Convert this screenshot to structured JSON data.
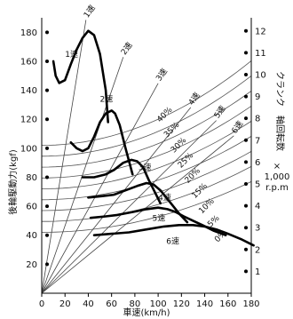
{
  "chart_data": {
    "type": "line",
    "title": "",
    "xlabel": "車速(km/h)",
    "ylabel": "後輪駆動力(kgf)",
    "y2label": [
      "クランク",
      "軸回転数",
      "×",
      "1,000",
      "r.p.m"
    ],
    "xlim": [
      0,
      180
    ],
    "ylim": [
      0,
      190
    ],
    "y2lim": [
      0,
      12.6
    ],
    "xticks": [
      "0",
      "20",
      "40",
      "60",
      "80",
      "100",
      "120",
      "140",
      "160",
      "180"
    ],
    "yticks": [
      "20",
      "40",
      "60",
      "80",
      "100",
      "120",
      "140",
      "160",
      "180"
    ],
    "y2ticks": [
      "1",
      "2",
      "3",
      "4",
      "5",
      "6",
      "7",
      "8",
      "9",
      "10",
      "11",
      "12"
    ],
    "gear_curves": [
      {
        "label": "1速",
        "points": [
          [
            10,
            160
          ],
          [
            12,
            150
          ],
          [
            15,
            145
          ],
          [
            20,
            147
          ],
          [
            25,
            158
          ],
          [
            30,
            168
          ],
          [
            35,
            176
          ],
          [
            40,
            181
          ],
          [
            45,
            178
          ],
          [
            50,
            165
          ],
          [
            55,
            140
          ],
          [
            57,
            118
          ]
        ]
      },
      {
        "label": "2速",
        "points": [
          [
            25,
            104
          ],
          [
            30,
            100
          ],
          [
            35,
            98
          ],
          [
            40,
            100
          ],
          [
            45,
            108
          ],
          [
            50,
            118
          ],
          [
            55,
            124
          ],
          [
            60,
            126
          ],
          [
            63,
            124
          ],
          [
            67,
            116
          ],
          [
            72,
            100
          ],
          [
            78,
            82
          ]
        ]
      },
      {
        "label": "3速",
        "points": [
          [
            35,
            80
          ],
          [
            45,
            80
          ],
          [
            55,
            82
          ],
          [
            62,
            85
          ],
          [
            70,
            90
          ],
          [
            77,
            92
          ],
          [
            82,
            91
          ],
          [
            87,
            87
          ],
          [
            92,
            78
          ],
          [
            97,
            70
          ],
          [
            102,
            62
          ]
        ]
      },
      {
        "label": "4速",
        "points": [
          [
            40,
            66
          ],
          [
            52,
            67
          ],
          [
            62,
            68
          ],
          [
            72,
            71
          ],
          [
            82,
            74
          ],
          [
            90,
            76
          ],
          [
            96,
            75
          ],
          [
            102,
            71
          ],
          [
            110,
            63
          ],
          [
            118,
            55
          ],
          [
            125,
            49
          ]
        ]
      },
      {
        "label": "5速",
        "points": [
          [
            42,
            52
          ],
          [
            55,
            53
          ],
          [
            65,
            54
          ],
          [
            78,
            56
          ],
          [
            90,
            58
          ],
          [
            100,
            59
          ],
          [
            108,
            58
          ],
          [
            115,
            56
          ],
          [
            122,
            53
          ],
          [
            130,
            50
          ],
          [
            138,
            47
          ],
          [
            148,
            43
          ],
          [
            158,
            40
          ]
        ]
      },
      {
        "label": "6速",
        "points": [
          [
            45,
            40
          ],
          [
            60,
            41
          ],
          [
            75,
            42
          ],
          [
            90,
            44
          ],
          [
            105,
            46
          ],
          [
            118,
            47
          ],
          [
            130,
            47
          ],
          [
            140,
            46
          ],
          [
            150,
            44
          ],
          [
            160,
            41
          ],
          [
            172,
            37
          ],
          [
            182,
            33
          ]
        ]
      }
    ],
    "grade_curve_labels": [
      "40%",
      "35%",
      "30%",
      "25%",
      "20%",
      "15%",
      "10%",
      "5%",
      "0%"
    ],
    "ray_labels": [
      "1速",
      "2速",
      "3速",
      "4速",
      "5速",
      "6速"
    ],
    "grid": false,
    "legend": "none"
  }
}
